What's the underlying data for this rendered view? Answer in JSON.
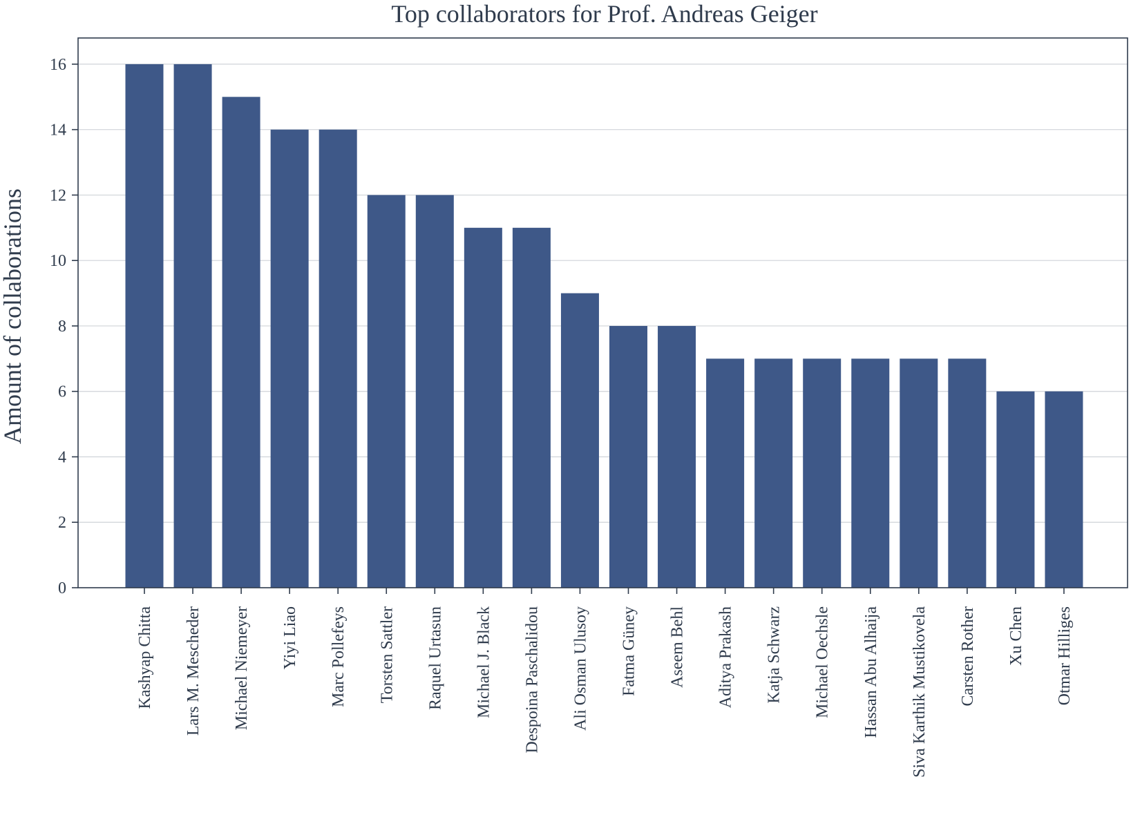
{
  "chart_data": {
    "type": "bar",
    "title": "Top collaborators for Prof. Andreas Geiger",
    "xlabel": "",
    "ylabel": "Amount of collaborations",
    "categories": [
      "Kashyap Chitta",
      "Lars M. Mescheder",
      "Michael Niemeyer",
      "Yiyi Liao",
      "Marc Pollefeys",
      "Torsten Sattler",
      "Raquel Urtasun",
      "Michael J. Black",
      "Despoina Paschalidou",
      "Ali Osman Ulusoy",
      "Fatma Güney",
      "Aseem Behl",
      "Aditya Prakash",
      "Katja Schwarz",
      "Michael Oechsle",
      "Hassan Abu Alhaija",
      "Siva Karthik Mustikovela",
      "Carsten Rother",
      "Xu Chen",
      "Otmar Hilliges"
    ],
    "values": [
      16,
      16,
      15,
      14,
      14,
      12,
      12,
      11,
      11,
      9,
      8,
      8,
      7,
      7,
      7,
      7,
      7,
      7,
      6,
      6
    ],
    "yticks": [
      0,
      2,
      4,
      6,
      8,
      10,
      12,
      14,
      16
    ],
    "ylim": [
      0,
      16.8
    ],
    "grid": "horizontal",
    "legend": "none",
    "bar_color": "#3e5888",
    "grid_color": "#cfd3d8",
    "text_color": "#2f3b4c"
  }
}
